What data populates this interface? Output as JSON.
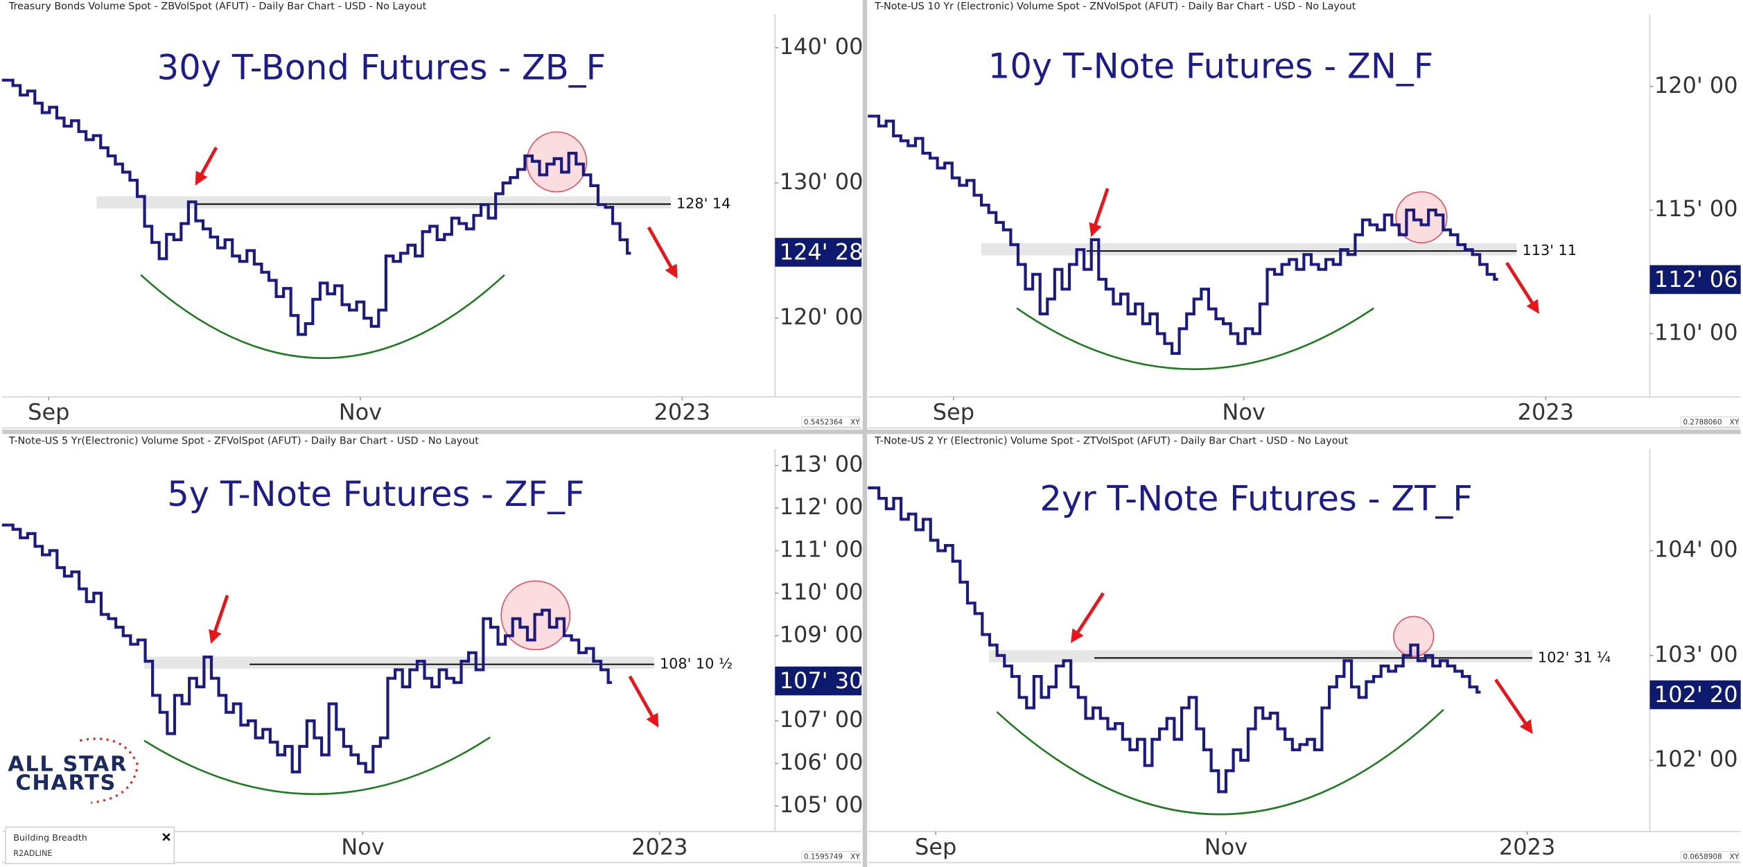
{
  "chart_data": [
    {
      "type": "bar",
      "header": "Treasury Bonds Volume Spot - ZBVolSpot (AFUT) - Daily Bar Chart - USD - No Layout",
      "title": "30y T-Bond Futures - ZB_F",
      "color": "#1a1a80",
      "values": [
        137.6,
        137.2,
        136.5,
        136.8,
        135.9,
        135.2,
        135.6,
        134.8,
        134.2,
        134.6,
        133.8,
        133.2,
        133.5,
        132.6,
        132.0,
        131.4,
        130.8,
        130.2,
        129.0,
        126.8,
        125.6,
        124.4,
        126.2,
        125.8,
        127.0,
        128.6,
        127.2,
        126.6,
        126.0,
        125.2,
        125.8,
        124.6,
        124.2,
        125.0,
        124.0,
        123.4,
        122.8,
        121.6,
        122.2,
        120.2,
        118.8,
        119.6,
        121.4,
        122.6,
        121.8,
        122.4,
        121.0,
        120.6,
        121.2,
        120.0,
        119.4,
        120.6,
        124.6,
        124.2,
        124.8,
        125.4,
        124.6,
        126.4,
        126.8,
        125.8,
        126.2,
        127.4,
        127.0,
        126.6,
        127.6,
        128.4,
        127.4,
        129.2,
        130.0,
        130.4,
        131.0,
        132.0,
        131.6,
        130.6,
        131.4,
        131.8,
        130.8,
        132.2,
        131.4,
        130.6,
        129.8,
        128.4,
        128.2,
        127.0,
        125.8,
        124.8
      ],
      "xlim": [
        -0.45,
        105.2
      ],
      "xticks": [
        {
          "value": 5.9,
          "label": "Sep"
        },
        {
          "value": 48.5,
          "label": "Nov"
        },
        {
          "value": 92.5,
          "label": "2023"
        }
      ],
      "ylim": [
        114.18,
        142.38
      ],
      "yticks": [
        {
          "value": 120,
          "label": "120' 00"
        },
        {
          "value": 130,
          "label": "130' 00"
        },
        {
          "value": 140,
          "label": "140' 00"
        }
      ],
      "level": {
        "value": 128.4375,
        "label": "128' 14"
      },
      "last": {
        "value": 124.875,
        "label": "124' 28"
      },
      "scale_label": "0.5452364",
      "scale_mode": "XY"
    },
    {
      "type": "bar",
      "header": "T-Note-US 10 Yr (Electronic) Volume Spot - ZNVolSpot (AFUT) - Daily Bar Chart - USD - No Layout",
      "title": "10y T-Note Futures - ZN_F",
      "color": "#1a1a80",
      "values": [
        118.8,
        118.4,
        118.6,
        118.0,
        117.8,
        117.6,
        117.9,
        117.3,
        117.1,
        116.7,
        116.9,
        116.3,
        116.0,
        116.2,
        115.6,
        115.2,
        114.9,
        114.5,
        114.2,
        113.6,
        112.8,
        111.8,
        112.4,
        110.8,
        111.4,
        112.6,
        111.8,
        112.8,
        113.4,
        112.6,
        113.8,
        112.2,
        111.8,
        111.2,
        111.6,
        110.8,
        111.2,
        110.4,
        110.8,
        110.0,
        109.6,
        109.2,
        110.2,
        110.8,
        111.4,
        111.8,
        111.0,
        110.6,
        110.4,
        110.0,
        109.6,
        110.2,
        110.0,
        111.2,
        112.6,
        112.4,
        112.8,
        113.0,
        112.6,
        113.2,
        112.8,
        112.6,
        113.0,
        112.8,
        113.4,
        113.2,
        114.0,
        114.6,
        114.4,
        114.2,
        114.8,
        114.4,
        114.0,
        115.0,
        114.6,
        114.4,
        115.0,
        114.8,
        114.2,
        114.0,
        113.6,
        113.4,
        113.2,
        112.8,
        112.4,
        112.2
      ],
      "xlim": [
        -0.45,
        106.2
      ],
      "xticks": [
        {
          "value": 11.2,
          "label": "Sep"
        },
        {
          "value": 50.8,
          "label": "Nov"
        },
        {
          "value": 92,
          "label": "2023"
        }
      ],
      "ylim": [
        107.44,
        122.87
      ],
      "yticks": [
        {
          "value": 110,
          "label": "110' 00"
        },
        {
          "value": 115,
          "label": "115' 00"
        },
        {
          "value": 120,
          "label": "120' 00"
        }
      ],
      "level": {
        "value": 113.34375,
        "label": "113' 11"
      },
      "last": {
        "value": 112.1875,
        "label": "112' 06"
      },
      "scale_label": "0.2788060",
      "scale_mode": "XY"
    },
    {
      "type": "bar",
      "header": "T-Note-US 5 Yr(Electronic) Volume Spot - ZFVolSpot (AFUT) - Daily Bar Chart - USD - No Layout",
      "title": "5y T-Note Futures - ZF_F",
      "color": "#1a1a80",
      "values": [
        111.6,
        111.5,
        111.3,
        111.4,
        111.1,
        110.9,
        111.0,
        110.6,
        110.4,
        110.5,
        110.1,
        109.8,
        110.0,
        109.5,
        109.4,
        109.2,
        109.0,
        108.8,
        108.9,
        108.4,
        107.6,
        107.2,
        106.7,
        107.6,
        107.4,
        108.0,
        107.8,
        108.5,
        108.0,
        107.6,
        107.2,
        107.4,
        106.9,
        107.0,
        106.6,
        106.8,
        106.5,
        106.2,
        106.4,
        105.8,
        106.4,
        107.0,
        106.6,
        106.2,
        107.4,
        106.8,
        106.4,
        106.2,
        106.0,
        105.8,
        106.4,
        106.6,
        108.0,
        108.2,
        107.8,
        108.2,
        108.4,
        108.0,
        107.8,
        108.2,
        108.0,
        107.9,
        108.4,
        108.6,
        108.2,
        109.4,
        109.2,
        108.8,
        109.0,
        109.4,
        109.2,
        108.9,
        109.5,
        109.6,
        109.2,
        109.4,
        109.0,
        108.9,
        108.6,
        108.7,
        108.4,
        108.2,
        107.9
      ],
      "xlim": [
        -0.45,
        104.7
      ],
      "xticks": [
        {
          "value": 48.6,
          "label": "Nov"
        },
        {
          "value": 89,
          "label": "2023"
        }
      ],
      "ylim": [
        104.4,
        113.36
      ],
      "yticks": [
        {
          "value": 105,
          "label": "105' 00"
        },
        {
          "value": 106,
          "label": "106' 00"
        },
        {
          "value": 107,
          "label": "107' 00"
        },
        {
          "value": 109,
          "label": "109' 00"
        },
        {
          "value": 110,
          "label": "110' 00"
        },
        {
          "value": 111,
          "label": "111' 00"
        },
        {
          "value": 112,
          "label": "112' 00"
        },
        {
          "value": 113,
          "label": "113' 00"
        }
      ],
      "level": {
        "value": 108.328125,
        "label": "108' 10 ½"
      },
      "last": {
        "value": 107.9375,
        "label": "107' 30"
      },
      "scale_label": "0.1595749",
      "scale_mode": "XY"
    },
    {
      "type": "bar",
      "header": "T-Note-US 2 Yr (Electronic) Volume Spot - ZTVolSpot (AFUT) - Daily Bar Chart - USD - No Layout",
      "title": "2yr T-Note Futures - ZT_F",
      "color": "#1a1a80",
      "values": [
        104.6,
        104.5,
        104.4,
        104.5,
        104.3,
        104.35,
        104.2,
        104.3,
        104.1,
        104.0,
        104.05,
        103.9,
        103.7,
        103.5,
        103.4,
        103.2,
        103.1,
        103.0,
        102.9,
        102.8,
        102.6,
        102.5,
        102.8,
        102.6,
        102.7,
        102.9,
        102.95,
        102.7,
        102.6,
        102.4,
        102.5,
        102.4,
        102.3,
        102.35,
        102.2,
        102.1,
        102.2,
        101.95,
        102.2,
        102.3,
        102.4,
        102.2,
        102.5,
        102.6,
        102.3,
        102.1,
        101.9,
        101.7,
        101.9,
        102.1,
        102.0,
        102.3,
        102.5,
        102.4,
        102.45,
        102.3,
        102.2,
        102.1,
        102.15,
        102.2,
        102.1,
        102.5,
        102.7,
        102.8,
        102.95,
        102.7,
        102.6,
        102.75,
        102.8,
        102.9,
        102.85,
        102.9,
        103.0,
        103.1,
        102.95,
        103.0,
        102.9,
        102.95,
        102.9,
        102.85,
        102.8,
        102.7,
        102.65
      ],
      "xlim": [
        -0.45,
        105.4
      ],
      "xticks": [
        {
          "value": 8.7,
          "label": "Sep"
        },
        {
          "value": 48,
          "label": "Nov"
        },
        {
          "value": 88.8,
          "label": "2023"
        }
      ],
      "ylim": [
        101.32,
        104.96
      ],
      "yticks": [
        {
          "value": 102,
          "label": "102' 00"
        },
        {
          "value": 103,
          "label": "103' 00"
        },
        {
          "value": 104,
          "label": "104' 00"
        }
      ],
      "level": {
        "value": 102.9765625,
        "label": "102' 31 ¼"
      },
      "last": {
        "value": 102.625,
        "label": "102' 20"
      },
      "scale_label": "0.0658908",
      "scale_mode": "XY"
    }
  ],
  "logo": {
    "lines": [
      "ALL STAR",
      "CHARTS"
    ]
  },
  "widget": {
    "title": "Building Breadth",
    "subtitle": "R2ADLINE"
  }
}
